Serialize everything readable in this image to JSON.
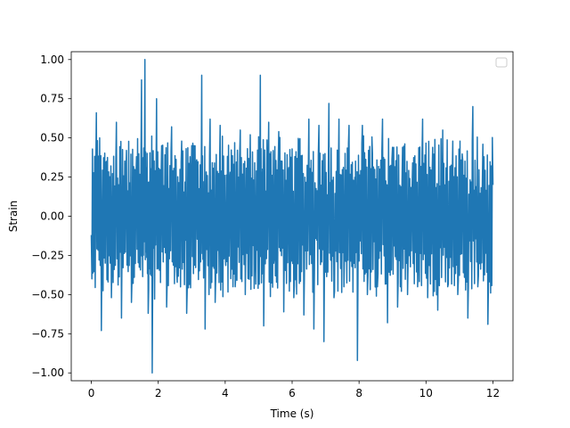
{
  "chart_data": {
    "type": "line",
    "title": "",
    "xlabel": "Time (s)",
    "ylabel": "Strain",
    "xlim": [
      -0.6,
      12.6
    ],
    "ylim": [
      -1.05,
      1.05
    ],
    "x_ticks": [
      0,
      2,
      4,
      6,
      8,
      10,
      12
    ],
    "x_tick_labels": [
      "0",
      "2",
      "4",
      "6",
      "8",
      "10",
      "12"
    ],
    "y_ticks": [
      -1.0,
      -0.75,
      -0.5,
      -0.25,
      0.0,
      0.25,
      0.5,
      0.75,
      1.0
    ],
    "y_tick_labels": [
      "−1.00",
      "−0.75",
      "−0.50",
      "−0.25",
      "0.00",
      "0.25",
      "0.50",
      "0.75",
      "1.00"
    ],
    "grid": false,
    "legend": {
      "placement": "upper right",
      "entries": []
    },
    "series": [
      {
        "color": "#1f77b4",
        "x": [
          0.0,
          0.15,
          0.3,
          0.45,
          0.6,
          0.75,
          0.9,
          1.05,
          1.2,
          1.35,
          1.5,
          1.6,
          1.7,
          1.82,
          1.95,
          2.1,
          2.25,
          2.4,
          2.55,
          2.7,
          2.85,
          3.0,
          3.15,
          3.3,
          3.4,
          3.55,
          3.7,
          3.85,
          4.0,
          4.15,
          4.3,
          4.45,
          4.6,
          4.75,
          4.9,
          5.05,
          5.15,
          5.3,
          5.45,
          5.6,
          5.75,
          5.9,
          6.05,
          6.2,
          6.35,
          6.5,
          6.65,
          6.8,
          6.95,
          7.1,
          7.25,
          7.4,
          7.55,
          7.7,
          7.85,
          7.95,
          8.1,
          8.25,
          8.4,
          8.55,
          8.7,
          8.85,
          9.0,
          9.15,
          9.3,
          9.45,
          9.6,
          9.75,
          9.9,
          10.05,
          10.2,
          10.35,
          10.5,
          10.65,
          10.8,
          10.95,
          11.1,
          11.25,
          11.4,
          11.55,
          11.7,
          11.85,
          12.0
        ],
        "y": [
          -0.12,
          0.66,
          -0.73,
          0.35,
          -0.52,
          0.6,
          -0.65,
          0.42,
          -0.55,
          0.38,
          0.87,
          1.0,
          -0.62,
          -1.0,
          0.75,
          0.45,
          -0.58,
          0.57,
          -0.35,
          0.48,
          -0.62,
          0.45,
          0.36,
          0.9,
          -0.72,
          0.62,
          -0.55,
          0.58,
          -0.22,
          0.28,
          -0.45,
          0.55,
          -0.5,
          0.52,
          -0.25,
          0.9,
          -0.7,
          0.6,
          -0.3,
          0.54,
          -0.61,
          0.31,
          -0.52,
          0.48,
          -0.63,
          0.62,
          -0.72,
          0.58,
          -0.8,
          0.72,
          -0.52,
          0.62,
          -0.45,
          0.58,
          -0.3,
          -0.92,
          0.58,
          -0.5,
          0.4,
          -0.45,
          0.62,
          -0.68,
          0.44,
          -0.58,
          0.44,
          -0.5,
          0.34,
          -0.45,
          0.62,
          -0.52,
          0.44,
          -0.6,
          0.55,
          -0.45,
          0.48,
          -0.5,
          0.35,
          -0.65,
          0.7,
          -0.45,
          0.46,
          -0.69,
          0.2
        ]
      }
    ]
  }
}
